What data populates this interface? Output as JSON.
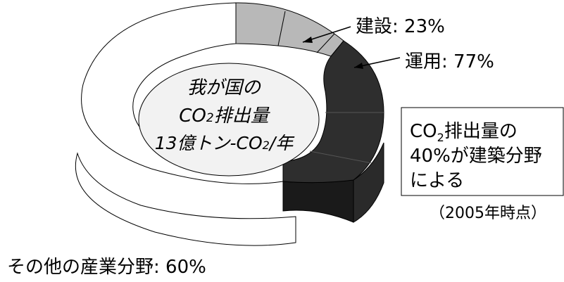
{
  "chart_data": {
    "type": "pie",
    "style": "3d-donut",
    "center_label": {
      "line1": "我が国の",
      "line2_prefix": "CO",
      "line2_sub": "2",
      "line2_suffix": "排出量",
      "line3_prefix": "13億トン-CO",
      "line3_sub": "2",
      "line3_suffix": "/年"
    },
    "slices": [
      {
        "name": "建設",
        "value": 23,
        "label": "建設: 23%",
        "color": "#b8b8b8"
      },
      {
        "name": "運用",
        "value": 77,
        "label": "運用: 77%",
        "color": "#2e2e2e"
      },
      {
        "name": "その他の産業分野",
        "value": 60,
        "label": "その他の産業分野: 60%",
        "color": "#ffffff"
      }
    ],
    "annotation_box": {
      "line1_prefix": "CO",
      "line1_sub": "2",
      "line1_suffix": "排出量の",
      "line2": "40%が建築分野",
      "line3": "による"
    },
    "note": "（2005年時点）"
  }
}
